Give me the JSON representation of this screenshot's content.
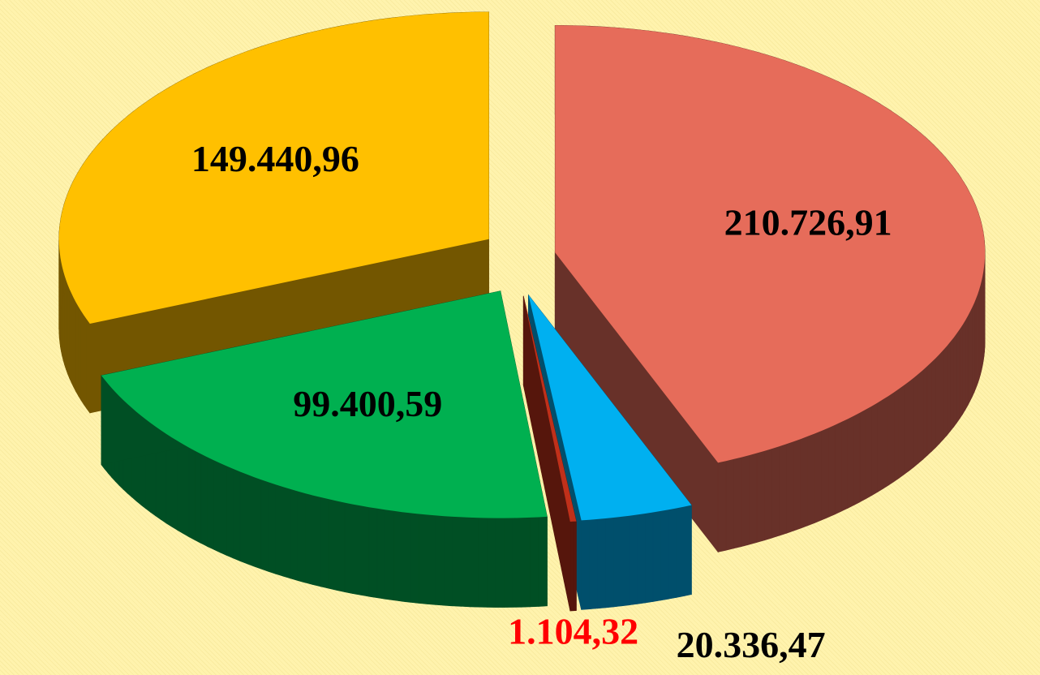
{
  "chart_data": {
    "type": "pie3d",
    "categories": [
      null,
      null,
      null,
      null,
      null
    ],
    "values": [
      210726.91,
      20336.47,
      1104.32,
      99400.59,
      149440.96
    ],
    "value_labels": [
      "210.726,91",
      "20.336,47",
      "1.104,32",
      "99.400,59",
      "149.440,96"
    ],
    "colors": [
      "#e66c5a",
      "#00b0f0",
      "#c0301a",
      "#00b050",
      "#ffc000"
    ],
    "label_colors": [
      "#000000",
      "#000000",
      "#ff0000",
      "#000000",
      "#000000"
    ]
  }
}
